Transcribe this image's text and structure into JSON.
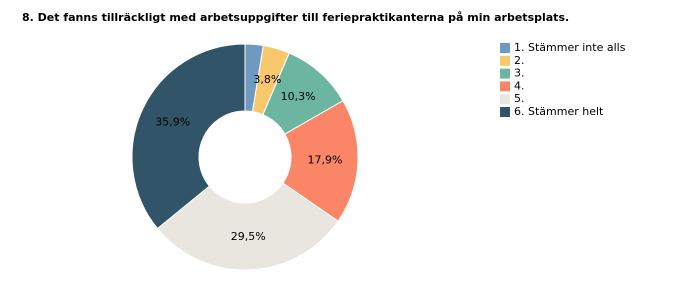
{
  "chart_data": {
    "type": "pie",
    "title": "8. Det fanns tillräckligt med arbetsuppgifter till feriepraktikanterna på min arbetsplats.",
    "categories": [
      "1. Stämmer inte alls",
      "2.",
      "3.",
      "4.",
      "5.",
      "6. Stämmer helt"
    ],
    "values": [
      2.6,
      3.8,
      10.3,
      17.9,
      29.5,
      35.9
    ],
    "value_labels": [
      null,
      "3,8%",
      "10,3%",
      "17,9%",
      "29,5%",
      "35,9%"
    ],
    "colors": [
      "#6f9ac0",
      "#f9c86d",
      "#6cb5a0",
      "#fa8667",
      "#e8e6df",
      "#325468"
    ],
    "legend": "right"
  }
}
